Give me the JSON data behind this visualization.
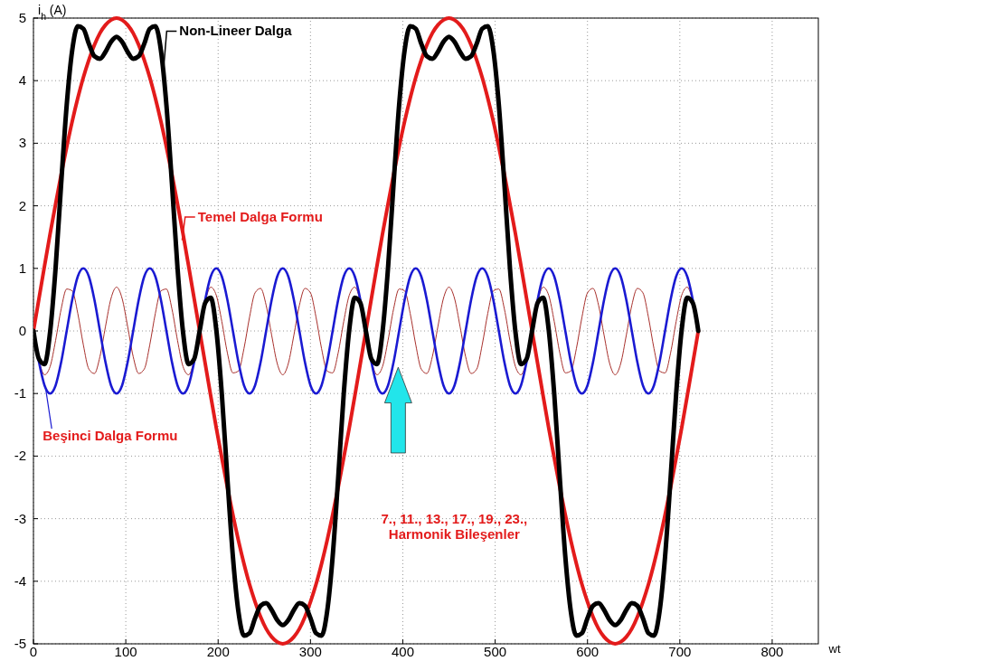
{
  "chart_data": {
    "type": "line",
    "xlabel": "wt",
    "ylabel": "i$_{h}$ (A)",
    "x": [
      0,
      6,
      12,
      18,
      24,
      30,
      36,
      42,
      48,
      54,
      60,
      66,
      72,
      78,
      84,
      90,
      96,
      102,
      108,
      114,
      120,
      126,
      132,
      138,
      144,
      150,
      156,
      162,
      168,
      174,
      180,
      186,
      192,
      198,
      204,
      210,
      216,
      222,
      228,
      234,
      240,
      246,
      252,
      258,
      264,
      270,
      276,
      282,
      288,
      294,
      300,
      306,
      312,
      318,
      324,
      330,
      336,
      342,
      348,
      354,
      360,
      366,
      372,
      378,
      384,
      390,
      396,
      402,
      408,
      414,
      420,
      426,
      432,
      438,
      444,
      450,
      456,
      462,
      468,
      474,
      480,
      486,
      492,
      498,
      504,
      510,
      516,
      522,
      528,
      534,
      540,
      546,
      552,
      558,
      564,
      570,
      576,
      582,
      588,
      594,
      600,
      606,
      612,
      618,
      624,
      630,
      636,
      642,
      648,
      654,
      660,
      666,
      672,
      678,
      684,
      690,
      696,
      702,
      708,
      714,
      720
    ],
    "xlim": [
      0,
      850
    ],
    "xticks": [
      0,
      100,
      200,
      300,
      400,
      500,
      600,
      700,
      800
    ],
    "ylim": [
      -5,
      5
    ],
    "yticks": [
      -5,
      -4,
      -3,
      -2,
      -1,
      0,
      1,
      2,
      3,
      4,
      5
    ],
    "grid": true,
    "legend": false,
    "marker": "none",
    "line_style": "solid",
    "series": [
      {
        "color": "#a8302c",
        "values": [
          0,
          -0.47,
          -0.7,
          -0.57,
          -0.15,
          0.35,
          0.67,
          0.64,
          0.28,
          -0.22,
          -0.61,
          -0.68,
          -0.41,
          0.07,
          0.52,
          0.7,
          0.52,
          0.07,
          -0.41,
          -0.68,
          -0.61,
          -0.22,
          0.28,
          0.64,
          0.67,
          0.35,
          -0.15,
          -0.57,
          -0.7,
          -0.47,
          0,
          0.47,
          0.7,
          0.57,
          0.15,
          -0.35,
          -0.67,
          -0.64,
          -0.28,
          0.22,
          0.61,
          0.68,
          0.41,
          -0.07,
          -0.52,
          -0.7,
          -0.52,
          -0.07,
          0.41,
          0.68,
          0.61,
          0.22,
          -0.28,
          -0.64,
          -0.67,
          -0.35,
          0.15,
          0.57,
          0.7,
          0.47,
          0,
          -0.47,
          -0.7,
          -0.57,
          -0.15,
          0.35,
          0.67,
          0.64,
          0.28,
          -0.22,
          -0.61,
          -0.68,
          -0.41,
          0.07,
          0.52,
          0.7,
          0.52,
          0.07,
          -0.41,
          -0.68,
          -0.61,
          -0.22,
          0.28,
          0.64,
          0.67,
          0.35,
          -0.15,
          -0.57,
          -0.7,
          -0.47,
          0,
          0.47,
          0.7,
          0.57,
          0.15,
          -0.35,
          -0.67,
          -0.64,
          -0.28,
          0.22,
          0.61,
          0.68,
          0.41,
          -0.07,
          -0.52,
          -0.7,
          -0.52,
          -0.07,
          0.41,
          0.68,
          0.61,
          0.22,
          -0.28,
          -0.64,
          -0.67,
          -0.35,
          0.15,
          0.57,
          0.7,
          0.47,
          0
        ]
      },
      {
        "name": "Beşinci Dalga Formu",
        "color": "#1a1ad2",
        "values": [
          0,
          -0.5,
          -0.87,
          -1,
          -0.87,
          -0.5,
          0,
          0.5,
          0.87,
          1,
          0.87,
          0.5,
          0,
          -0.5,
          -0.87,
          -1,
          -0.87,
          -0.5,
          0,
          0.5,
          0.87,
          1,
          0.87,
          0.5,
          0,
          -0.5,
          -0.87,
          -1,
          -0.87,
          -0.5,
          0,
          0.5,
          0.87,
          1,
          0.87,
          0.5,
          0,
          -0.5,
          -0.87,
          -1,
          -0.87,
          -0.5,
          0,
          0.5,
          0.87,
          1,
          0.87,
          0.5,
          0,
          -0.5,
          -0.87,
          -1,
          -0.87,
          -0.5,
          0,
          0.5,
          0.87,
          1,
          0.87,
          0.5,
          0,
          -0.5,
          -0.87,
          -1,
          -0.87,
          -0.5,
          0,
          0.5,
          0.87,
          1,
          0.87,
          0.5,
          0,
          -0.5,
          -0.87,
          -1,
          -0.87,
          -0.5,
          0,
          0.5,
          0.87,
          1,
          0.87,
          0.5,
          0,
          -0.5,
          -0.87,
          -1,
          -0.87,
          -0.5,
          0,
          0.5,
          0.87,
          1,
          0.87,
          0.5,
          0,
          -0.5,
          -0.87,
          -1,
          -0.87,
          -0.5,
          0,
          0.5,
          0.87,
          1,
          0.87,
          0.5,
          0,
          -0.5,
          -0.87,
          -1,
          -0.87,
          -0.5,
          0,
          0.5,
          0.87,
          1,
          0.87,
          0.5,
          0
        ]
      },
      {
        "name": "Temel Dalga Formu",
        "color": "#e31b1b",
        "values": [
          0,
          0.52,
          1.04,
          1.55,
          2.03,
          2.5,
          2.94,
          3.35,
          3.72,
          4.05,
          4.33,
          4.57,
          4.76,
          4.89,
          4.97,
          5,
          4.97,
          4.89,
          4.76,
          4.57,
          4.33,
          4.05,
          3.72,
          3.35,
          2.94,
          2.5,
          2.03,
          1.55,
          1.04,
          0.52,
          0,
          -0.52,
          -1.04,
          -1.55,
          -2.03,
          -2.5,
          -2.94,
          -3.35,
          -3.72,
          -4.05,
          -4.33,
          -4.57,
          -4.76,
          -4.89,
          -4.97,
          -5,
          -4.97,
          -4.89,
          -4.76,
          -4.57,
          -4.33,
          -4.05,
          -3.72,
          -3.35,
          -2.94,
          -2.5,
          -2.03,
          -1.55,
          -1.04,
          -0.52,
          0,
          0.52,
          1.04,
          1.55,
          2.03,
          2.5,
          2.94,
          3.35,
          3.72,
          4.05,
          4.33,
          4.57,
          4.76,
          4.89,
          4.97,
          5,
          4.97,
          4.89,
          4.76,
          4.57,
          4.33,
          4.05,
          3.72,
          3.35,
          2.94,
          2.5,
          2.03,
          1.55,
          1.04,
          0.52,
          0,
          -0.52,
          -1.04,
          -1.55,
          -2.03,
          -2.5,
          -2.94,
          -3.35,
          -3.72,
          -4.05,
          -4.33,
          -4.57,
          -4.76,
          -4.89,
          -4.97,
          -5,
          -4.97,
          -4.89,
          -4.76,
          -4.57,
          -4.33,
          -4.05,
          -3.72,
          -3.35,
          -2.94,
          -2.5,
          -2.03,
          -1.55,
          -1.04,
          -0.52,
          0
        ]
      },
      {
        "name": "Non-Lineer Dalga",
        "color": "#000000",
        "values": [
          0,
          -0.45,
          -0.53,
          -0.02,
          1.01,
          2.35,
          3.61,
          4.49,
          4.87,
          4.83,
          4.59,
          4.39,
          4.35,
          4.46,
          4.62,
          4.7,
          4.62,
          4.46,
          4.35,
          4.39,
          4.59,
          4.83,
          4.87,
          4.49,
          3.61,
          2.35,
          1.01,
          -0.02,
          -0.53,
          -0.45,
          0,
          0.45,
          0.53,
          0.02,
          -1.01,
          -2.35,
          -3.61,
          -4.49,
          -4.87,
          -4.83,
          -4.59,
          -4.39,
          -4.35,
          -4.46,
          -4.62,
          -4.7,
          -4.62,
          -4.46,
          -4.35,
          -4.39,
          -4.59,
          -4.83,
          -4.87,
          -4.49,
          -3.61,
          -2.35,
          -1.01,
          0.02,
          0.53,
          0.45,
          0,
          -0.45,
          -0.53,
          -0.02,
          1.01,
          2.35,
          3.61,
          4.49,
          4.87,
          4.83,
          4.59,
          4.39,
          4.35,
          4.46,
          4.62,
          4.7,
          4.62,
          4.46,
          4.35,
          4.39,
          4.59,
          4.83,
          4.87,
          4.49,
          3.61,
          2.35,
          1.01,
          -0.02,
          -0.53,
          -0.45,
          0,
          0.45,
          0.53,
          0.02,
          -1.01,
          -2.35,
          -3.61,
          -4.49,
          -4.87,
          -4.83,
          -4.59,
          -4.39,
          -4.35,
          -4.46,
          -4.62,
          -4.7,
          -4.62,
          -4.46,
          -4.35,
          -4.39,
          -4.59,
          -4.83,
          -4.87,
          -4.49,
          -3.61,
          -2.35,
          -1.01,
          0.02,
          0.53,
          0.45,
          0
        ]
      }
    ],
    "annotations": [
      "7., 11., 13., 17., 19., 23.,",
      "Harmonik Bileşenler"
    ]
  }
}
